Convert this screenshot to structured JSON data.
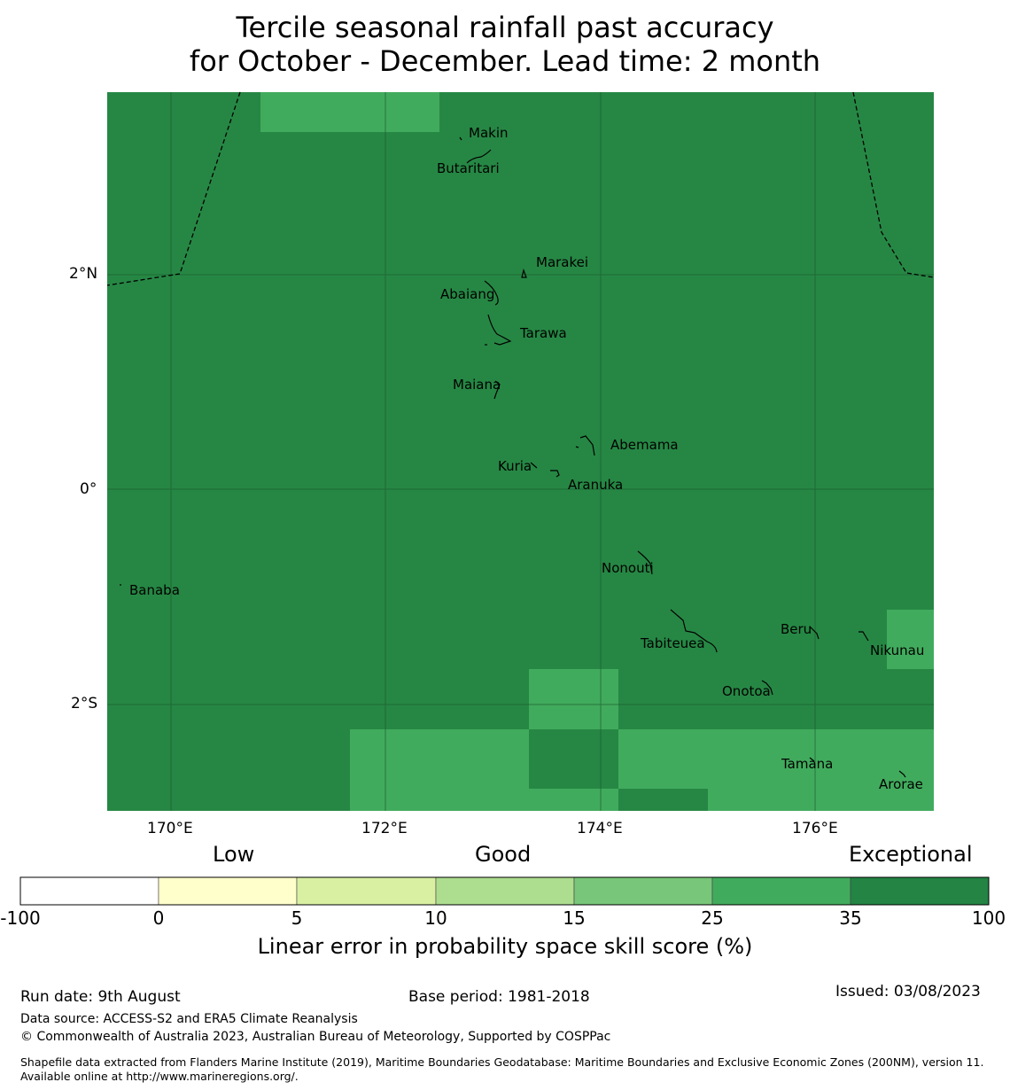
{
  "title_line1": "Tercile seasonal rainfall past accuracy",
  "title_line2": "for October - December. Lead time: 2 month",
  "map": {
    "background_color": "#268744",
    "lat_ticks": [
      "2°N",
      "0°",
      "2°S"
    ],
    "lon_ticks": [
      "170°E",
      "172°E",
      "174°E",
      "176°E"
    ],
    "islands": [
      "Makin",
      "Butaritari",
      "Marakei",
      "Abaiang",
      "Tarawa",
      "Maiana",
      "Abemama",
      "Kuria",
      "Aranuka",
      "Nonouti",
      "Banaba",
      "Beru",
      "Tabiteuea",
      "Nikunau",
      "Onotoa",
      "Tamana",
      "Arorae"
    ]
  },
  "colorbar": {
    "categories": [
      "Low",
      "Good",
      "Exceptional"
    ],
    "ticks": [
      "-100",
      "0",
      "5",
      "10",
      "15",
      "25",
      "35",
      "100"
    ],
    "colors": [
      "#ffffff",
      "#ffffcc",
      "#d9f0a3",
      "#addd8e",
      "#78c679",
      "#41ab5d",
      "#238443"
    ],
    "title": "Linear error in probability space skill score (%)"
  },
  "footer": {
    "run_date": "Run date: 9th August",
    "base_period": "Base period: 1981-2018",
    "issued": "Issued: 03/08/2023",
    "data_source": "Data source: ACCESS-S2 and ERA5 Climate Reanalysis",
    "copyright": "© Commonwealth of Australia 2023, Australian Bureau of Meteorology, Supported by COSPPac",
    "shapefile_note": "Shapefile data extracted from Flanders Marine Institute (2019), Maritime Boundaries Geodatabase: Maritime Boundaries and Exclusive Economic Zones (200NM), version 11. Available online at http://www.marineregions.org/."
  }
}
